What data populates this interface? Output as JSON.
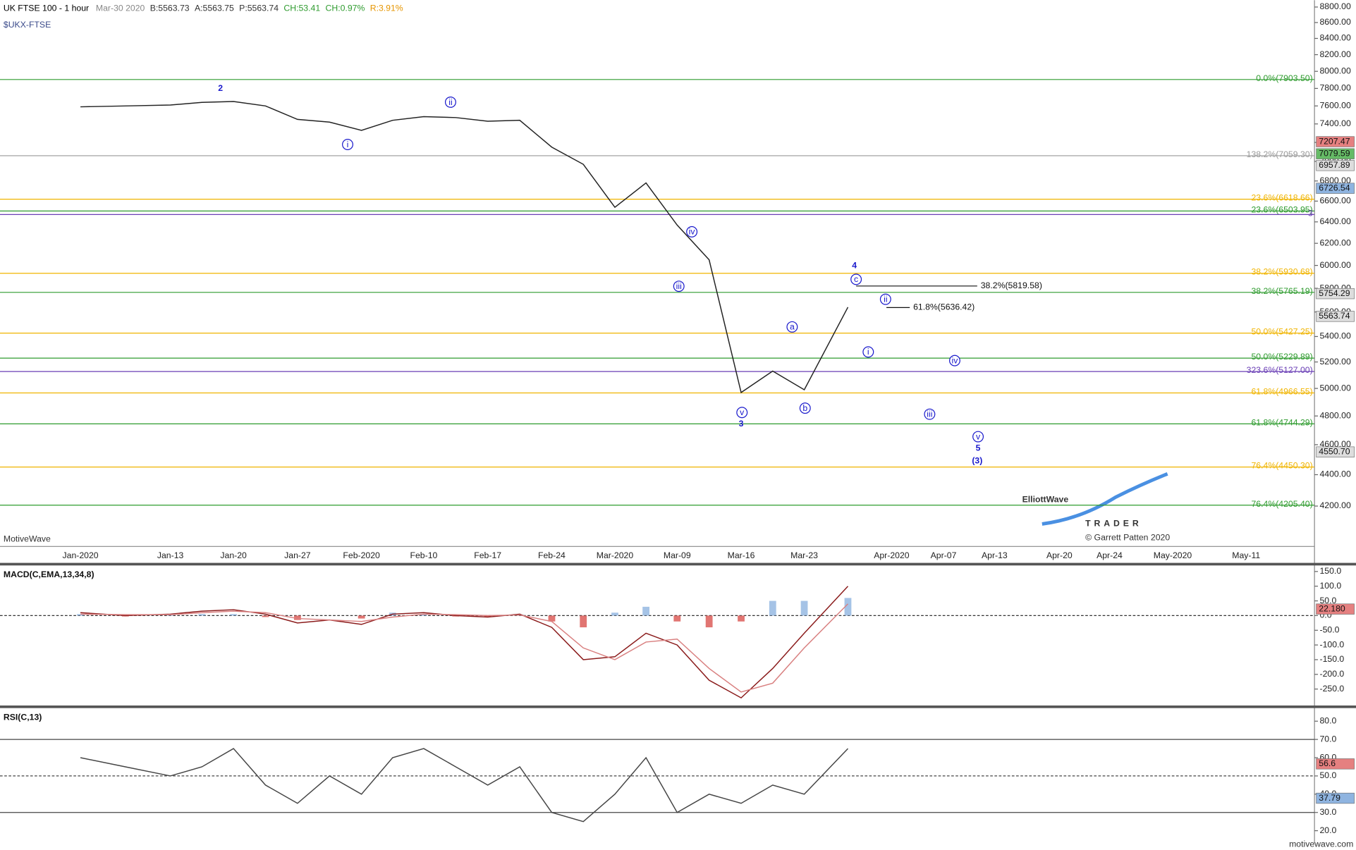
{
  "header": {
    "title": "UK FTSE 100 - 1 hour",
    "date": "Mar-30 2020",
    "bid": "B:5563.73",
    "ask": "A:5563.75",
    "last": "P:5563.74",
    "change": "CH:53.41",
    "change_pct": "CH:0.97%",
    "range": "R:3.91%",
    "symbol": "$UKX-FTSE"
  },
  "footer": {
    "platform": "MotiveWave",
    "copyright": "© Garrett Patten 2020",
    "logo": "ElliottWave",
    "logo_sub": "TRADER",
    "site": "motivewave.com"
  },
  "chart_data": [
    {
      "type": "line",
      "log_scale": true,
      "categories": [
        "Jan-2020",
        null,
        "Jan-13",
        null,
        "Jan-20",
        null,
        "Jan-27",
        null,
        "Feb-2020",
        null,
        "Feb-10",
        null,
        "Feb-17",
        null,
        "Feb-24",
        null,
        "Mar-2020",
        null,
        "Mar-09",
        null,
        "Mar-16",
        null,
        "Mar-23",
        null,
        "Apr-2020",
        null,
        "Apr-07",
        null,
        "Apr-13",
        null,
        "Apr-20",
        null,
        "Apr-24",
        null,
        "May-2020",
        null,
        "May-11"
      ],
      "series": [
        {
          "color": "#222222",
          "values": [
            7590,
            7600,
            7610,
            7640,
            7650,
            7600,
            7450,
            7420,
            7330,
            7440,
            7480,
            7470,
            7430,
            7440,
            7150,
            6970,
            6540,
            6780,
            6370,
            6050,
            4970,
            5130,
            4990,
            5640,
            null,
            null,
            null,
            null,
            null,
            null,
            null,
            null,
            null,
            null,
            null,
            null,
            null
          ]
        }
      ],
      "ylim": [
        3956,
        8890
      ],
      "yticks": [
        {
          "value": 4200,
          "label": "4200.00"
        },
        {
          "value": 4400,
          "label": "4400.00"
        },
        {
          "value": 4600,
          "label": "4600.00"
        },
        {
          "value": 4800,
          "label": "4800.00"
        },
        {
          "value": 5000,
          "label": "5000.00"
        },
        {
          "value": 5200,
          "label": "5200.00"
        },
        {
          "value": 5400,
          "label": "5400.00"
        },
        {
          "value": 5600,
          "label": "5600.00"
        },
        {
          "value": 5800,
          "label": "5800.00"
        },
        {
          "value": 6000,
          "label": "6000.00"
        },
        {
          "value": 6200,
          "label": "6200.00"
        },
        {
          "value": 6400,
          "label": "6400.00"
        },
        {
          "value": 6600,
          "label": "6600.00"
        },
        {
          "value": 6800,
          "label": "6800.00"
        },
        {
          "value": 7000,
          "label": "7000.00"
        },
        {
          "value": 7200,
          "label": "7200.00"
        },
        {
          "value": 7400,
          "label": "7400.00"
        },
        {
          "value": 7600,
          "label": "7600.00"
        },
        {
          "value": 7800,
          "label": "7800.00"
        },
        {
          "value": 8000,
          "label": "8000.00"
        },
        {
          "value": 8200,
          "label": "8200.00"
        },
        {
          "value": 8400,
          "label": "8400.00"
        },
        {
          "value": 8600,
          "label": "8600.00"
        },
        {
          "value": 8800,
          "label": "8800.00"
        }
      ],
      "fib_lines": [
        {
          "label": "0.0%(7903.50)",
          "value": 7903.5,
          "color": "#2e9b2e"
        },
        {
          "label": "138.2%(7059.30)",
          "value": 7059.3,
          "color": "#999999"
        },
        {
          "label": "23.6%(6618.66)",
          "value": 6618.66,
          "color": "#f0b400"
        },
        {
          "label": "23.6%(6503.95)",
          "value": 6503.95,
          "color": "#2e9b2e"
        },
        {
          "label": "3",
          "value": 6470,
          "color": "#6a3fb5"
        },
        {
          "label": "38.2%(5930.68)",
          "value": 5930.68,
          "color": "#f0b400"
        },
        {
          "label": "38.2%(5765.19)",
          "value": 5765.19,
          "color": "#2e9b2e"
        },
        {
          "label": "50.0%(5427.25)",
          "value": 5427.25,
          "color": "#f0b400"
        },
        {
          "label": "50.0%(5229.89)",
          "value": 5229.89,
          "color": "#2e9b2e"
        },
        {
          "label": "323.6%(5127.00)",
          "value": 5127,
          "color": "#6a3fb5"
        },
        {
          "label": "61.8%(4966.55)",
          "value": 4966.55,
          "color": "#f0b400"
        },
        {
          "label": "61.8%(4744.29)",
          "value": 4744.29,
          "color": "#2e9b2e"
        },
        {
          "label": "76.4%(4450.30)",
          "value": 4450.3,
          "color": "#f0b400"
        },
        {
          "label": "76.4%(4205.40)",
          "value": 4205.4,
          "color": "#2e9b2e"
        }
      ],
      "measure_lines": [
        {
          "label": "38.2%(5819.58)",
          "value": 5819.58
        },
        {
          "label": "61.8%(5636.42)",
          "value": 5636.42
        }
      ],
      "price_tags": [
        {
          "value": 7207.47,
          "label": "7207.47",
          "color": "#e58080"
        },
        {
          "value": 7079.59,
          "label": "7079.59",
          "color": "#66bb66"
        },
        {
          "value": 6957.89,
          "label": "6957.89",
          "color": "#dddddd"
        },
        {
          "value": 6726.54,
          "label": "6726.54",
          "color": "#8fb4e0"
        },
        {
          "value": 5754.29,
          "label": "5754.29",
          "color": "#dddddd"
        },
        {
          "value": 5563.74,
          "label": "5563.74",
          "color": "#dddddd"
        },
        {
          "value": 4550.7,
          "label": "4550.70",
          "color": "#dddddd"
        }
      ],
      "annotations": [
        {
          "text": "2",
          "circled": false
        },
        {
          "text": "ii",
          "circled": true
        },
        {
          "text": "i",
          "circled": true
        },
        {
          "text": "iv",
          "circled": true
        },
        {
          "text": "iii",
          "circled": true
        },
        {
          "text": "4",
          "circled": false
        },
        {
          "text": "c",
          "circled": true
        },
        {
          "text": "ii",
          "circled": true
        },
        {
          "text": "a",
          "circled": true
        },
        {
          "text": "i",
          "circled": true
        },
        {
          "text": "iv",
          "circled": true
        },
        {
          "text": "v",
          "circled": true
        },
        {
          "text": "3",
          "circled": false
        },
        {
          "text": "b",
          "circled": true
        },
        {
          "text": "iii",
          "circled": true
        },
        {
          "text": "v",
          "circled": true
        },
        {
          "text": "5",
          "circled": false
        },
        {
          "text": "(3)",
          "circled": false
        }
      ]
    },
    {
      "type": "macd",
      "title": "MACD(C,EMA,13,34,8)",
      "series": [
        {
          "color": "#8a1a1a",
          "values": [
            10,
            0,
            5,
            15,
            20,
            5,
            -25,
            -15,
            -30,
            5,
            10,
            0,
            -5,
            5,
            -40,
            -150,
            -140,
            -60,
            -100,
            -220,
            -280,
            -180,
            -60,
            100
          ]
        },
        {
          "color": "#d98080",
          "values": [
            5,
            3,
            3,
            10,
            15,
            10,
            -10,
            -15,
            -20,
            -5,
            5,
            3,
            0,
            2,
            -20,
            -110,
            -150,
            -90,
            -80,
            -180,
            -260,
            -230,
            -110,
            40
          ]
        }
      ],
      "histogram": [
        5,
        -3,
        2,
        5,
        5,
        -5,
        -15,
        0,
        -10,
        10,
        5,
        -3,
        -5,
        3,
        -20,
        -40,
        10,
        30,
        -20,
        -40,
        -20,
        50,
        50,
        60
      ],
      "positive_color": "#8fb4e0",
      "negative_color": "#d9534f",
      "ylim": [
        -303,
        167.6
      ],
      "yticks": [
        {
          "value": -250,
          "label": "-250.0"
        },
        {
          "value": -200,
          "label": "-200.0"
        },
        {
          "value": -150,
          "label": "-150.0"
        },
        {
          "value": -100,
          "label": "-100.0"
        },
        {
          "value": -50,
          "label": "-50.0"
        },
        {
          "value": 0,
          "label": "0.0"
        },
        {
          "value": 50,
          "label": "50.0"
        },
        {
          "value": 100,
          "label": "100.0"
        },
        {
          "value": 150,
          "label": "150.0"
        }
      ],
      "price_tags": [
        {
          "value": 22.18,
          "label": "22.180",
          "color": "#e58080"
        }
      ]
    },
    {
      "type": "rsi",
      "title": "RSI(C,13)",
      "series": [
        {
          "color": "#444444",
          "values": [
            60,
            55,
            50,
            55,
            65,
            45,
            35,
            50,
            40,
            60,
            65,
            55,
            45,
            55,
            30,
            25,
            40,
            60,
            30,
            40,
            35,
            45,
            40,
            65
          ]
        }
      ],
      "ylim": [
        13.3,
        86.7
      ],
      "yticks": [
        {
          "value": 20,
          "label": "20.0"
        },
        {
          "value": 30,
          "label": "30.0"
        },
        {
          "value": 40,
          "label": "40.0"
        },
        {
          "value": 50,
          "label": "50.0"
        },
        {
          "value": 60,
          "label": "60.0"
        },
        {
          "value": 70,
          "label": "70.0"
        },
        {
          "value": 80,
          "label": "80.0"
        }
      ],
      "ref_lines": [
        70,
        50,
        30
      ],
      "price_tags": [
        {
          "value": 56.6,
          "label": "56.6",
          "color": "#e58080"
        },
        {
          "value": 37.79,
          "label": "37.79",
          "color": "#8fb4e0"
        }
      ]
    }
  ]
}
